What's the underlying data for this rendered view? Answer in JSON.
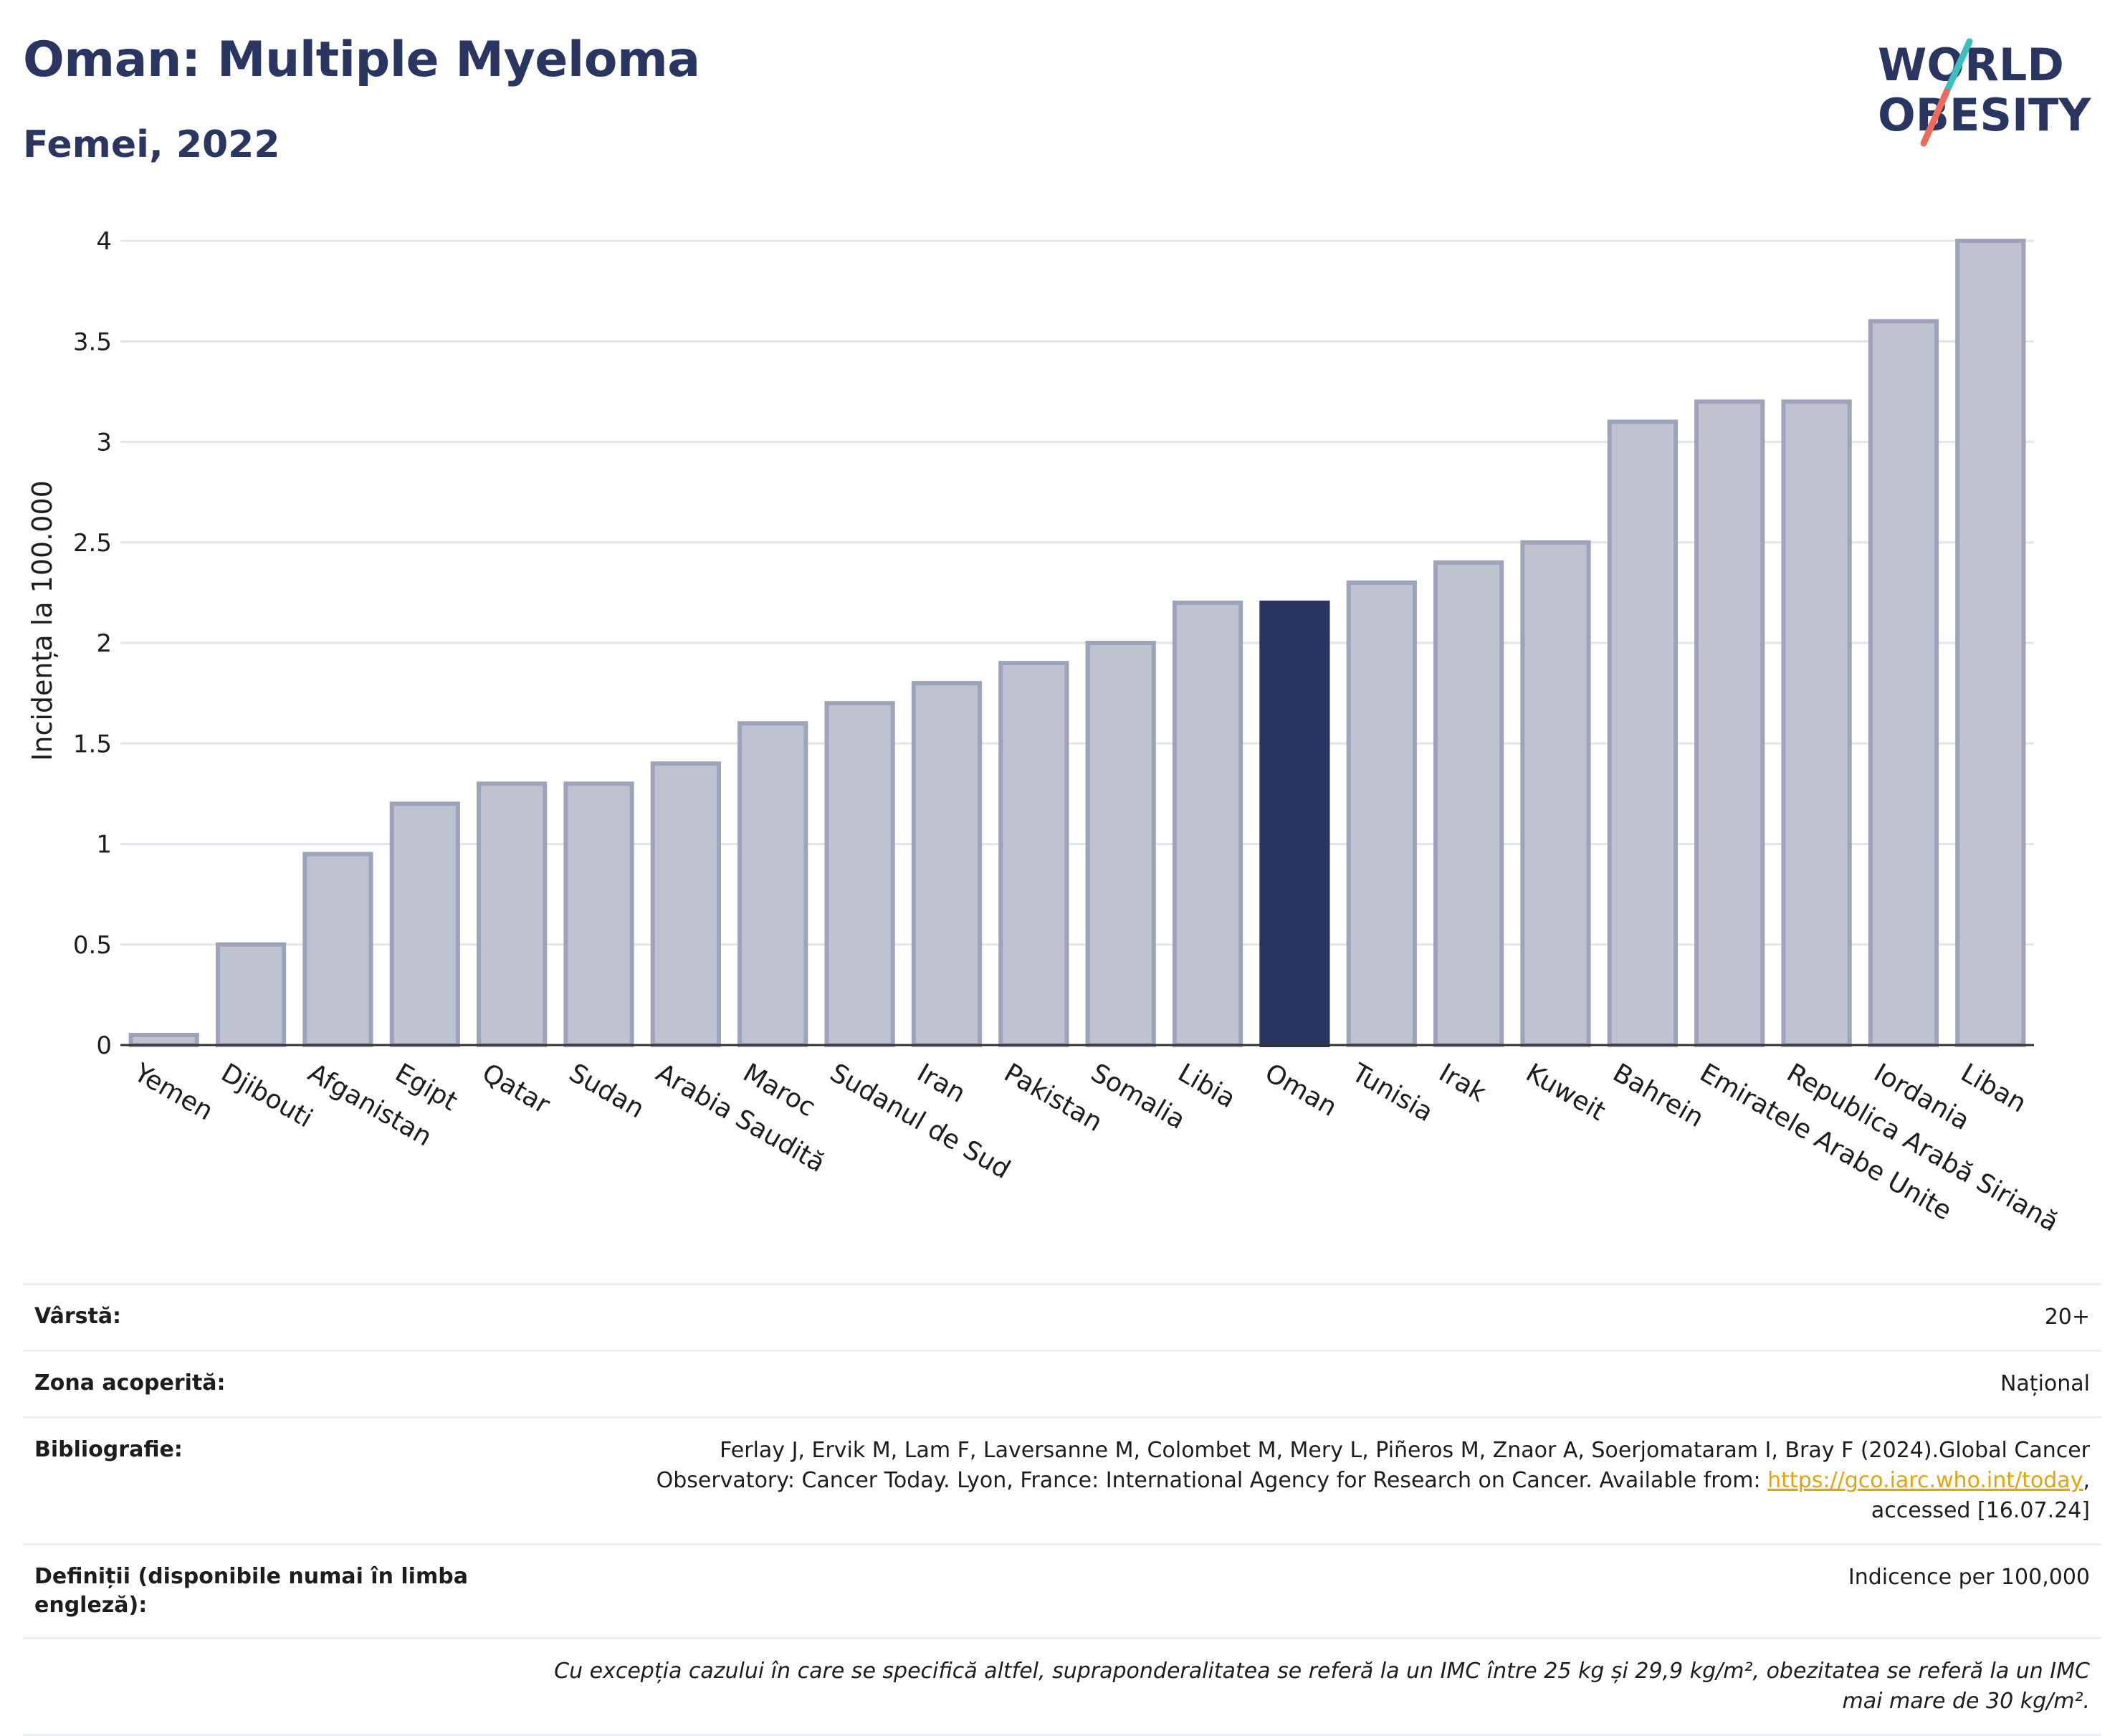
{
  "header": {
    "title": "Oman: Multiple Myeloma",
    "subtitle": "Femei, 2022",
    "logo_line1": "WORLD",
    "logo_line2": "OBESITY"
  },
  "colors": {
    "title": "#2b3562",
    "bar": "#bfc3cf",
    "bar_border": "#9da3ba",
    "highlight": "#2b3562",
    "grid": "#e3e5ec",
    "link": "#e3a40b",
    "logo_teal": "#3bbfbf",
    "logo_coral": "#ee6a5a"
  },
  "chart_data": {
    "type": "bar",
    "ylabel": "Incidența la 100.000",
    "ylim": [
      0,
      4
    ],
    "yticks": [
      "0",
      "0.5",
      "1",
      "1.5",
      "2",
      "2.5",
      "3",
      "3.5",
      "4"
    ],
    "ytick_values": [
      0,
      0.5,
      1,
      1.5,
      2,
      2.5,
      3,
      3.5,
      4
    ],
    "grid": true,
    "highlight": "Oman",
    "categories": [
      "Yemen",
      "Djibouti",
      "Afganistan",
      "Egipt",
      "Qatar",
      "Sudan",
      "Arabia Saudită",
      "Maroc",
      "Sudanul de Sud",
      "Iran",
      "Pakistan",
      "Somalia",
      "Libia",
      "Oman",
      "Tunisia",
      "Irak",
      "Kuweit",
      "Bahrein",
      "Emiratele Arabe Unite",
      "Republica Arabă Siriană",
      "Iordania",
      "Liban"
    ],
    "values": [
      0.05,
      0.5,
      0.95,
      1.2,
      1.3,
      1.3,
      1.4,
      1.6,
      1.7,
      1.8,
      1.9,
      2.0,
      2.2,
      2.2,
      2.3,
      2.4,
      2.5,
      3.1,
      3.2,
      3.2,
      3.6,
      4.0
    ]
  },
  "info": {
    "age_label": "Vârstă:",
    "age_value": "20+",
    "area_label": "Zona acoperită:",
    "area_value": "Național",
    "biblio_label": "Bibliografie:",
    "biblio_line1": "Ferlay J, Ervik M, Lam F, Laversanne M, Colombet M, Mery L, Piñeros M, Znaor A, Soerjomataram I, Bray F (2024).Global Cancer",
    "biblio_line2_pre": "Observatory: Cancer Today. Lyon, France: International Agency for Research on Cancer. Available from: ",
    "biblio_link": "https://gco.iarc.who.int/today",
    "biblio_line2_post": ",",
    "biblio_line3": "accessed [16.07.24]",
    "def_label": "Definiții (disponibile numai în limba engleză):",
    "def_value": "Indicence per 100,000",
    "note": "Cu excepția cazului în care se specifică altfel, supraponderalitatea se referă la un IMC între 25 kg și 29,9 kg/m², obezitatea se referă la un IMC mai mare de 30 kg/m²."
  }
}
